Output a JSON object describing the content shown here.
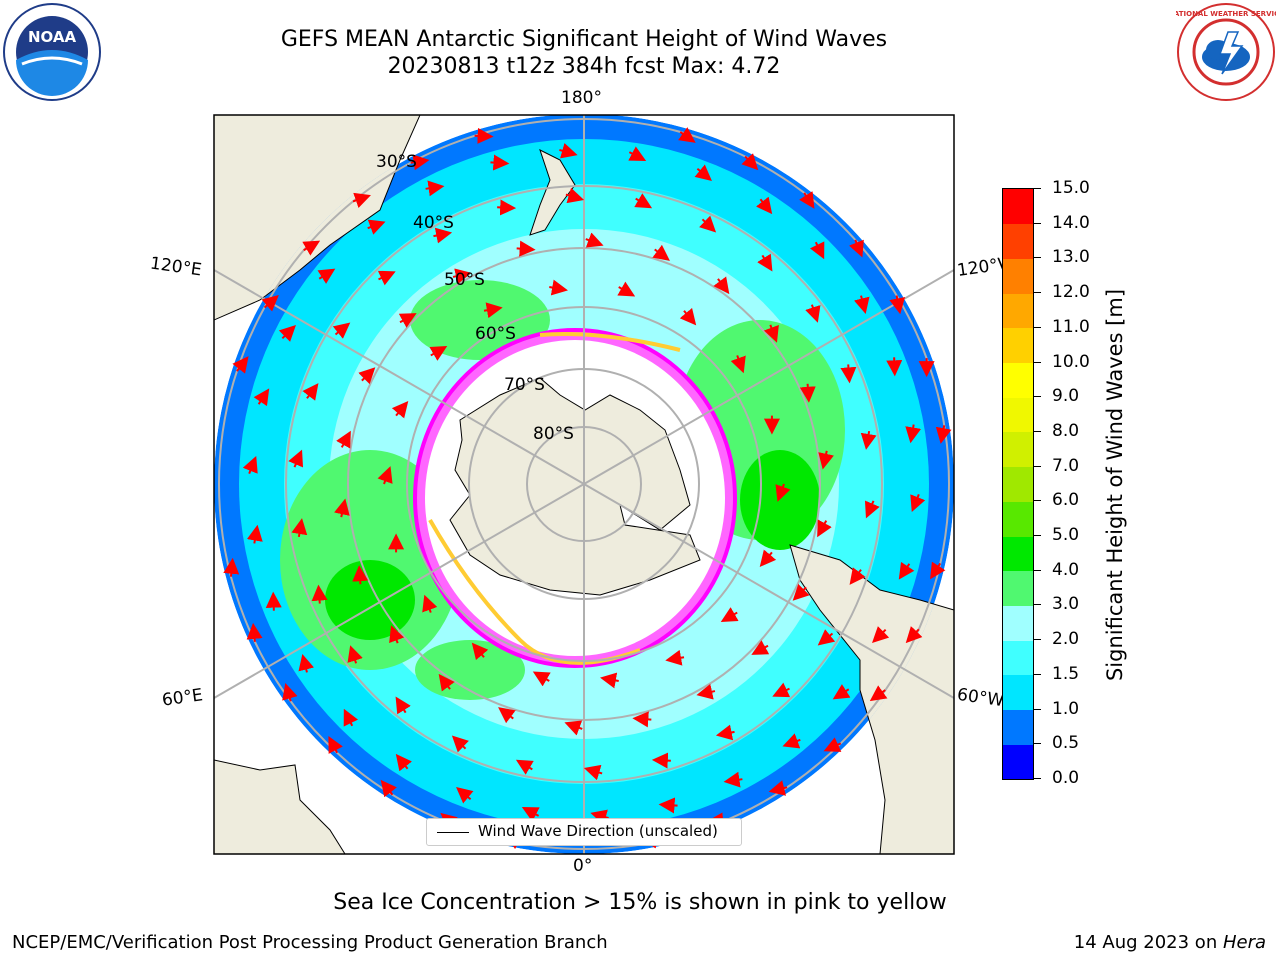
{
  "title": {
    "line1": "GEFS MEAN Antarctic Significant Height of Wind Waves",
    "line2": "20230813 t12z 384h fcst   Max: 4.72"
  },
  "logos": {
    "noaa_text": "NOAA",
    "nws_text": "NATIONAL WEATHER SERVICE"
  },
  "map": {
    "projection": "south-polar-stereographic",
    "longitude_labels": {
      "top": "180°",
      "bottom": "0°",
      "upper_left": "120°E",
      "lower_left": "60°E",
      "upper_right": "120°W",
      "lower_right": "60°W"
    },
    "latitude_labels": [
      "30°S",
      "40°S",
      "50°S",
      "60°S",
      "70°S",
      "80°S"
    ],
    "colors": {
      "land": "#eeecdd",
      "ice_free_ocean_low": "#00ffff",
      "sea_ice_interior": "#ffffff",
      "sea_ice_edge": "#ff33ff",
      "arrows": "#ff0000",
      "grid": "#b0b0b0"
    }
  },
  "colorbar": {
    "title": "Significant Height of Wind Waves [m]",
    "tick_labels": [
      "0.0",
      "0.5",
      "1.0",
      "1.5",
      "2.0",
      "3.0",
      "4.0",
      "5.0",
      "6.0",
      "7.0",
      "8.0",
      "9.0",
      "10.0",
      "11.0",
      "12.0",
      "13.0",
      "14.0",
      "15.0"
    ],
    "colors": [
      "#0000ff",
      "#0078ff",
      "#00e6ff",
      "#40ffff",
      "#a0ffff",
      "#50f870",
      "#00e800",
      "#58e800",
      "#a0e800",
      "#d0f000",
      "#f0f800",
      "#ffff00",
      "#ffd000",
      "#ffa800",
      "#ff8000",
      "#ff4000",
      "#ff0000"
    ]
  },
  "legend": {
    "label": "Wind Wave Direction (unscaled)"
  },
  "note": "Sea Ice Concentration > 15% is shown in pink to yellow",
  "footer": {
    "left": "NCEP/EMC/Verification Post Processing Product Generation Branch",
    "right_prefix": "14 Aug 2023 on ",
    "right_machine": "Hera"
  }
}
